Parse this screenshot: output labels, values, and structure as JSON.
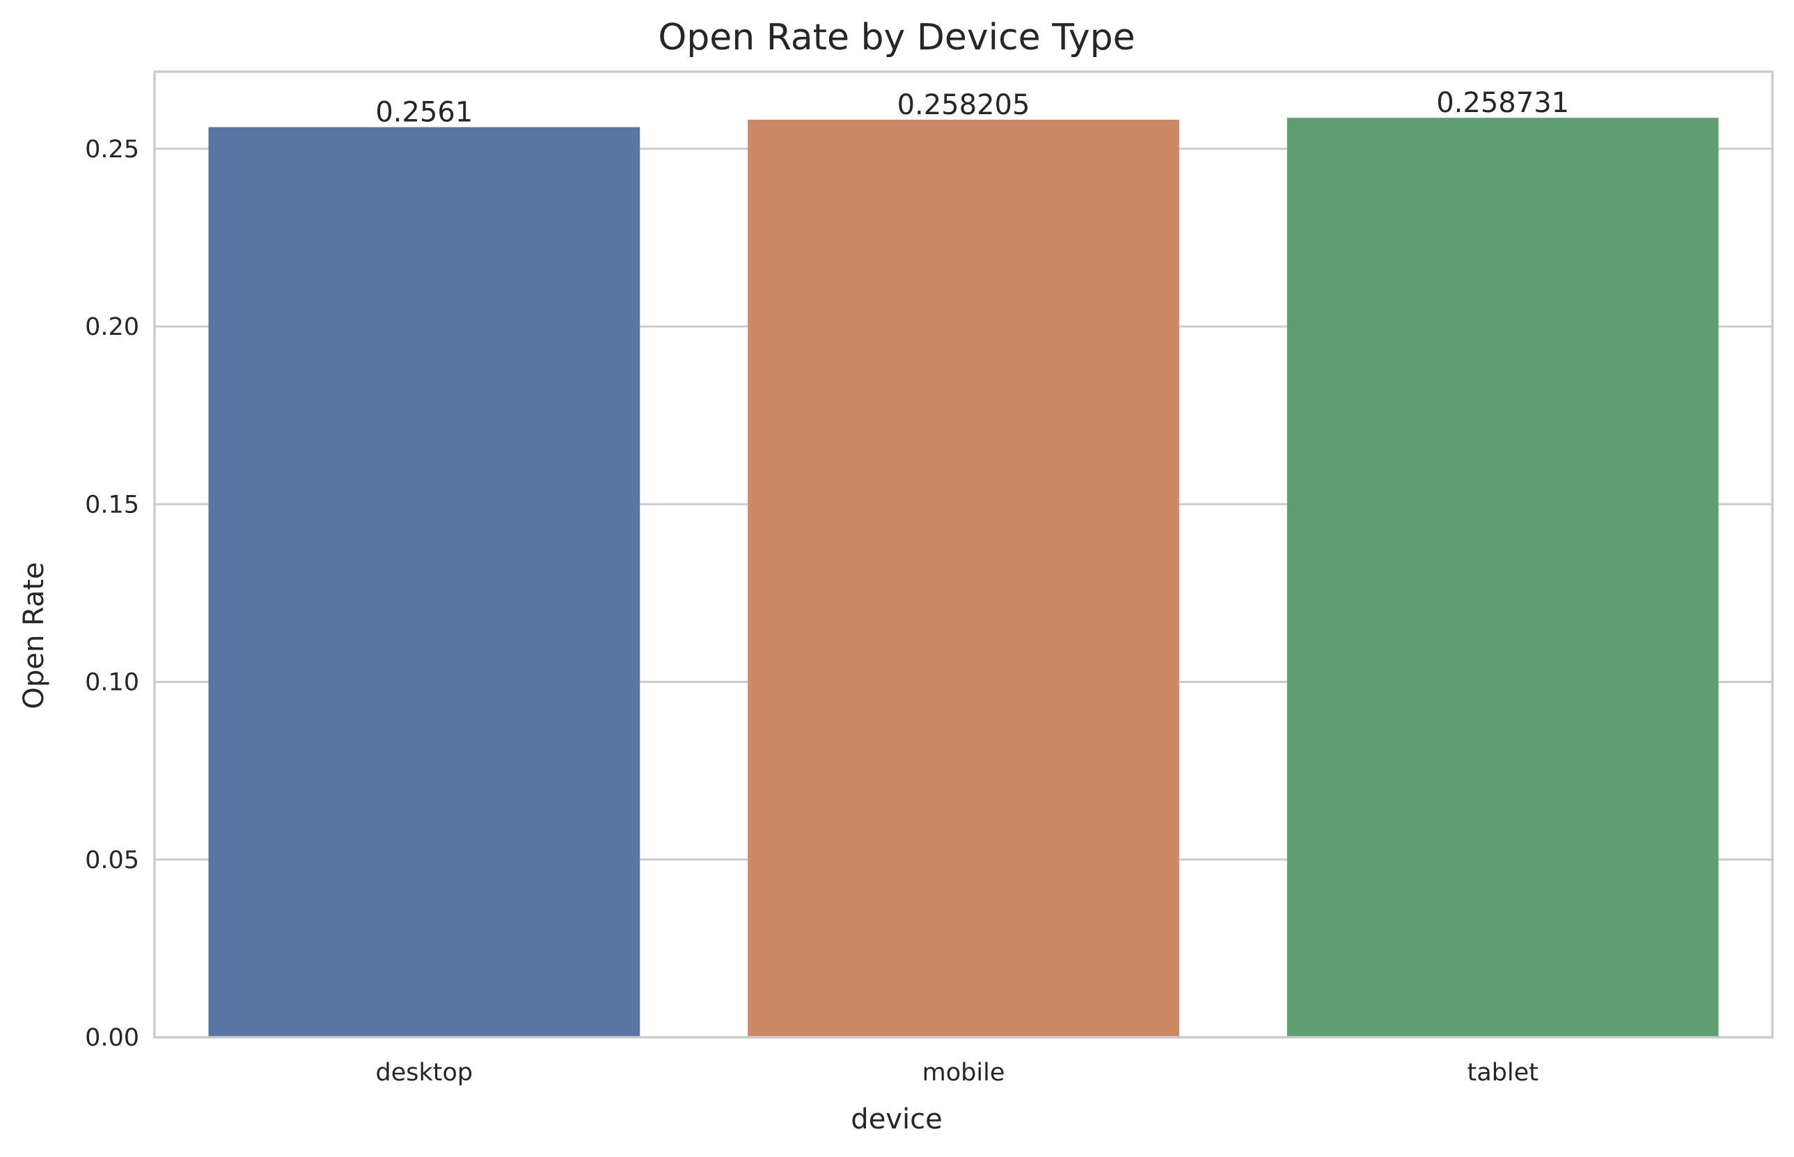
{
  "chart_data": {
    "type": "bar",
    "title": "Open Rate by Device Type",
    "xlabel": "device",
    "ylabel": "Open Rate",
    "categories": [
      "desktop",
      "mobile",
      "tablet"
    ],
    "values": [
      0.2561,
      0.258205,
      0.258731
    ],
    "data_labels": [
      "0.2561",
      "0.258205",
      "0.258731"
    ],
    "colors": [
      "#5875a4",
      "#cc8963",
      "#5f9e6e"
    ],
    "ylim": [
      0,
      0.2717
    ],
    "yticks": [
      0.0,
      0.05,
      0.1,
      0.15,
      0.2,
      0.25
    ],
    "ytick_labels": [
      "0.00",
      "0.05",
      "0.10",
      "0.15",
      "0.20",
      "0.25"
    ],
    "grid": "y",
    "legend": "none"
  }
}
